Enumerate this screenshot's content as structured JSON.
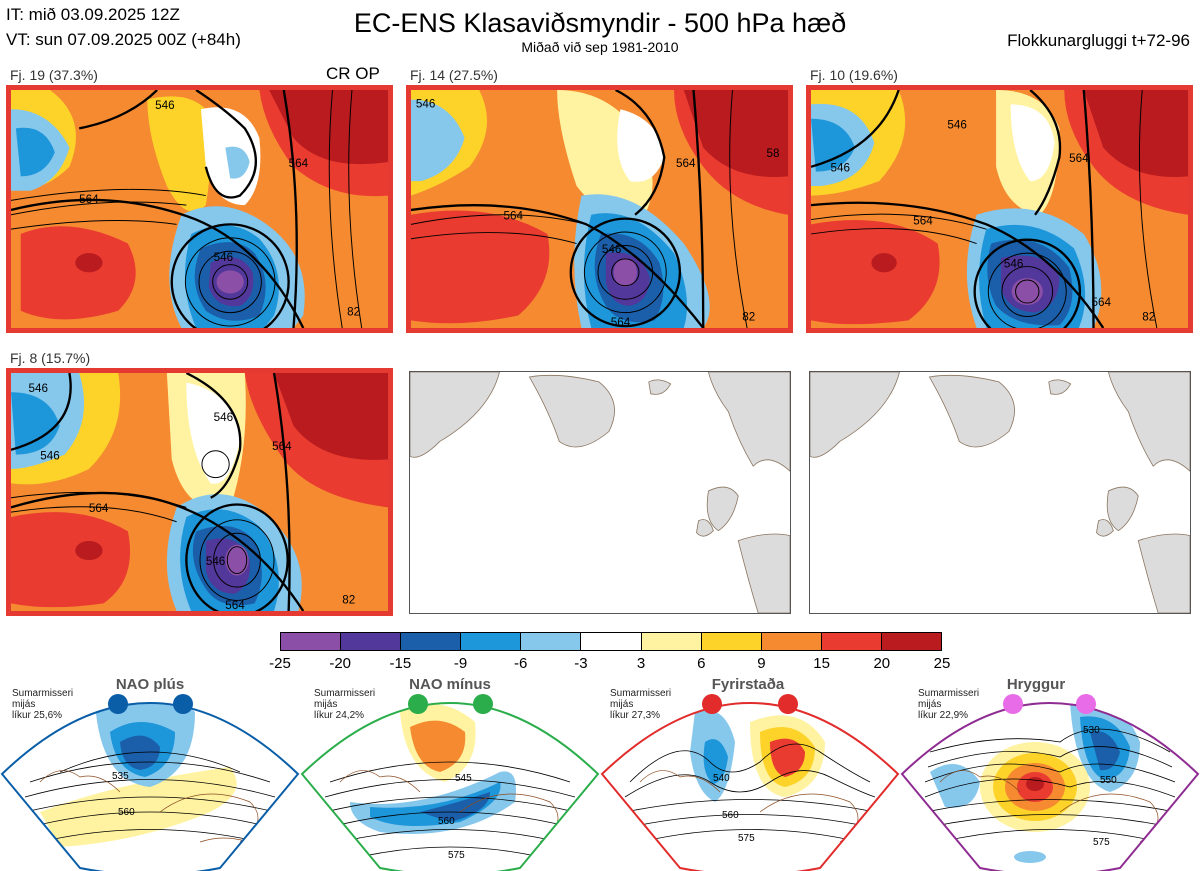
{
  "header": {
    "init_time": "IT: mið 03.09.2025 12Z",
    "valid_time": "VT: sun 07.09.2025 00Z  (+84h)",
    "title": "EC-ENS Klasaviðsmyndir - 500 hPa hæð",
    "subtitle": "Miðað við sep 1981-2010",
    "window": "Flokkunargluggi t+72-96"
  },
  "clusters": [
    {
      "label": "Fj. 19 (37.3%)",
      "contours": [
        "546",
        "546",
        "564",
        "564",
        "82"
      ]
    },
    {
      "label": "Fj. 14 (27.5%)",
      "contours": [
        "546",
        "546",
        "564",
        "564",
        "58",
        "82",
        "564"
      ]
    },
    {
      "label": "Fj. 10 (19.6%)",
      "contours": [
        "546",
        "546",
        "564",
        "564",
        "546",
        "564",
        "82"
      ]
    },
    {
      "label": "Fj. 8 (15.7%)",
      "contours": [
        "546",
        "546",
        "546",
        "564",
        "564",
        "546",
        "82",
        "564"
      ]
    }
  ],
  "cr_op_label": "CR OP",
  "colorbar": {
    "ticks": [
      "-25",
      "-20",
      "-15",
      "-9",
      "-6",
      "-3",
      "3",
      "6",
      "9",
      "15",
      "20",
      "25"
    ],
    "colors": [
      "#8b4fa8",
      "#52389a",
      "#1b5faa",
      "#1d96da",
      "#86c7ec",
      "#ffffff",
      "#fff3a1",
      "#fdd32a",
      "#f58a30",
      "#ea3b31",
      "#b91b1f"
    ]
  },
  "regimes": [
    {
      "title": "NAO plús",
      "info": [
        "Sumarmisseri",
        "mijás",
        "líkur 25,6%"
      ],
      "contours": [
        "535",
        "560"
      ],
      "color": "#0a5ea8"
    },
    {
      "title": "NAO mínus",
      "info": [
        "Sumarmisseri",
        "mijás",
        "líkur 24,2%"
      ],
      "contours": [
        "545",
        "560",
        "575"
      ],
      "color": "#2aad4a"
    },
    {
      "title": "Fyrirstaða",
      "info": [
        "Sumarmisseri",
        "mijás",
        "líkur 27,3%"
      ],
      "contours": [
        "540",
        "560",
        "575"
      ],
      "color": "#e22b2b"
    },
    {
      "title": "Hryggur",
      "info": [
        "Sumarmisseri",
        "mijás",
        "líkur 22,9%"
      ],
      "contours": [
        "530",
        "550",
        "575"
      ],
      "color": "#e86ce8"
    }
  ]
}
